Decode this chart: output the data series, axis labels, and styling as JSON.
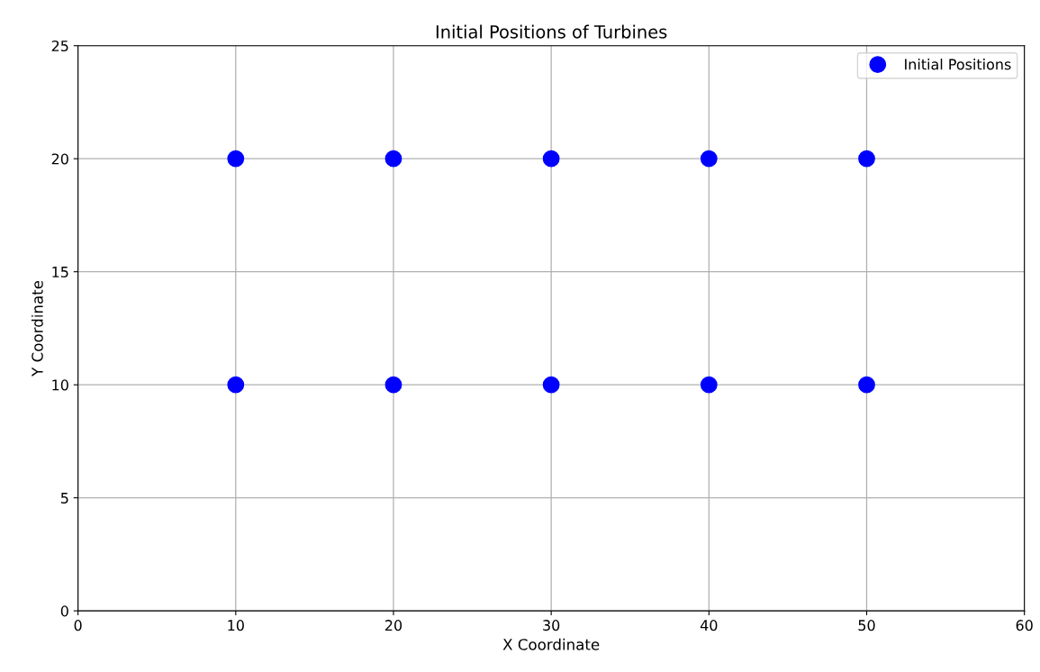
{
  "chart_data": {
    "type": "scatter",
    "title": "Initial Positions of Turbines",
    "xlabel": "X Coordinate",
    "ylabel": "Y Coordinate",
    "series": [
      {
        "name": "Initial Positions",
        "color": "#0000ff",
        "x": [
          10,
          20,
          30,
          40,
          50,
          10,
          20,
          30,
          40,
          50
        ],
        "values": [
          10,
          10,
          10,
          10,
          10,
          20,
          20,
          20,
          20,
          20
        ]
      }
    ],
    "xlim": [
      0,
      60
    ],
    "xticks": [
      0,
      10,
      20,
      30,
      40,
      50,
      60
    ],
    "ylim": [
      0,
      25
    ],
    "yticks": [
      0,
      5,
      10,
      15,
      20,
      25
    ],
    "grid": true,
    "legend": "top right",
    "marker": "circle"
  }
}
